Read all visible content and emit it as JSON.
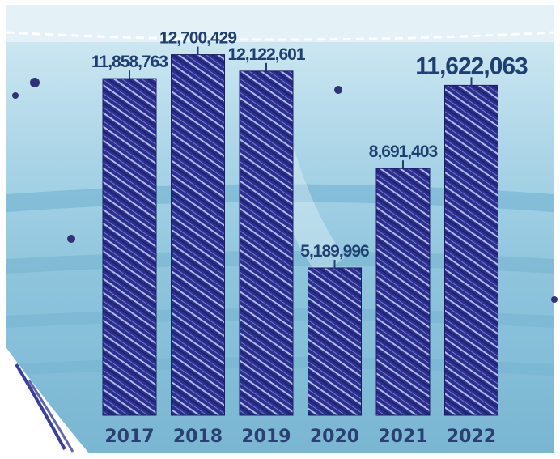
{
  "chart_data": {
    "type": "bar",
    "categories": [
      "2017",
      "2018",
      "2019",
      "2020",
      "2021",
      "2022"
    ],
    "values": [
      11858763,
      12700429,
      12122601,
      5189996,
      8691403,
      11622063
    ],
    "value_labels": [
      "11,858,763",
      "12,700,429",
      "12,122,601",
      "5,189,996",
      "8,691,403",
      "11,622,063"
    ],
    "highlight_index": 5,
    "title": "",
    "xlabel": "",
    "ylabel": "",
    "ylim": [
      0,
      14000000
    ],
    "grid": false,
    "legend": "none"
  },
  "colors": {
    "bar": "#2c2f8e",
    "bar_dark": "#1c1e63",
    "stripe": "#c7d6f5",
    "label": "#1f3f70",
    "year": "#2b3f73",
    "mask_light": "#b7dcea",
    "mask_mid": "#8cc4dc",
    "mask_fold": "#6eaecd",
    "mask_edge": "#e9f3f8",
    "dot": "#2e3276"
  }
}
